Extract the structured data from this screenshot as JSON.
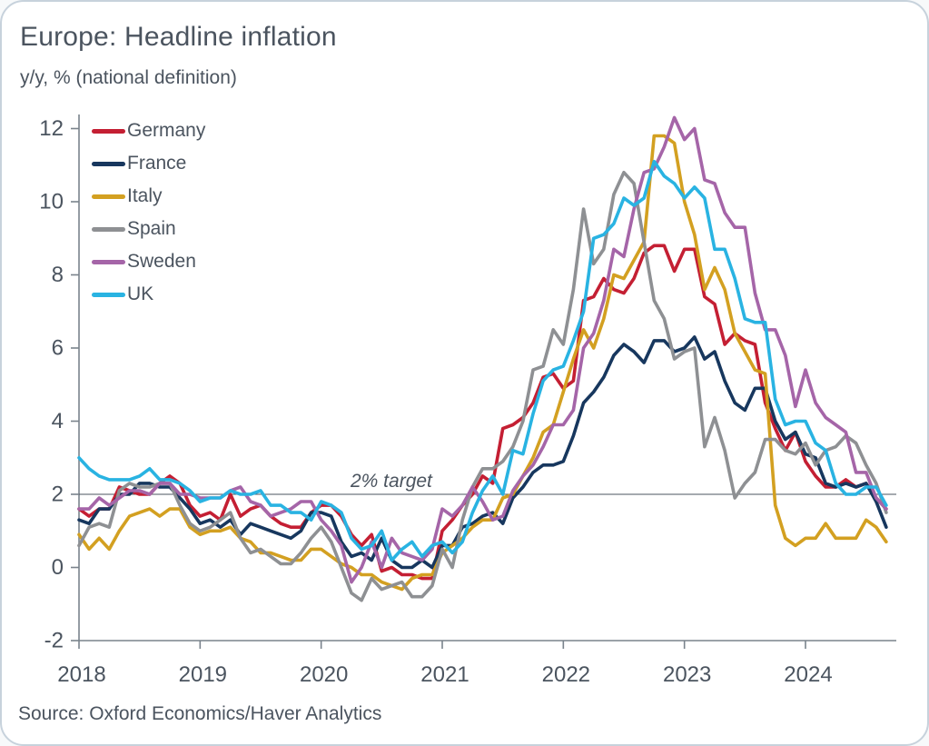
{
  "chart_data": {
    "type": "line",
    "title": "Europe: Headline inflation",
    "subtitle": "y/y, % (national definition)",
    "source": "Source: Oxford Economics/Haver Analytics",
    "annotation": "2% target",
    "target_value": 2,
    "frequency": "monthly",
    "x_start": "2018-01",
    "x_end": "2024-09",
    "x_tick_labels": [
      "2018",
      "2019",
      "2020",
      "2021",
      "2022",
      "2023",
      "2024"
    ],
    "y_ticks": [
      -2,
      0,
      2,
      4,
      6,
      8,
      10,
      12
    ],
    "ylim": [
      -2,
      12
    ],
    "grid": false,
    "legend_position": "top-left",
    "axis_color": "#7a838c",
    "text_color": "#4b545f",
    "series": [
      {
        "name": "Germany",
        "color": "#c41f33",
        "values": [
          1.6,
          1.4,
          1.6,
          1.6,
          2.2,
          2.1,
          2.0,
          2.0,
          2.3,
          2.5,
          2.3,
          1.7,
          1.4,
          1.5,
          1.3,
          2.0,
          1.4,
          1.6,
          1.7,
          1.4,
          1.2,
          1.1,
          1.1,
          1.5,
          1.7,
          1.7,
          1.4,
          0.9,
          0.6,
          0.9,
          -0.1,
          0.0,
          -0.2,
          -0.2,
          -0.3,
          -0.3,
          1.0,
          1.3,
          1.7,
          2.0,
          2.5,
          2.3,
          3.8,
          3.9,
          4.1,
          4.5,
          5.2,
          5.3,
          4.9,
          5.1,
          7.3,
          7.4,
          7.9,
          7.6,
          7.5,
          7.9,
          8.6,
          8.8,
          8.8,
          8.1,
          8.7,
          8.7,
          7.4,
          7.2,
          6.1,
          6.4,
          6.2,
          6.1,
          4.5,
          3.8,
          3.2,
          3.7,
          2.9,
          2.5,
          2.2,
          2.2,
          2.4,
          2.2,
          2.3,
          1.9,
          1.6
        ]
      },
      {
        "name": "France",
        "color": "#17375e",
        "values": [
          1.3,
          1.2,
          1.6,
          1.6,
          2.0,
          2.0,
          2.3,
          2.3,
          2.2,
          2.2,
          1.9,
          1.6,
          1.2,
          1.3,
          1.1,
          1.3,
          0.9,
          1.2,
          1.1,
          1.0,
          0.9,
          0.8,
          1.0,
          1.5,
          1.5,
          1.4,
          0.7,
          0.3,
          0.4,
          0.2,
          0.8,
          0.2,
          0.0,
          0.0,
          0.2,
          0.0,
          0.6,
          0.6,
          1.1,
          1.2,
          1.4,
          1.5,
          1.2,
          1.9,
          2.2,
          2.6,
          2.8,
          2.8,
          2.9,
          3.6,
          4.5,
          4.8,
          5.2,
          5.8,
          6.1,
          5.9,
          5.6,
          6.2,
          6.2,
          5.9,
          6.0,
          6.3,
          5.7,
          5.9,
          5.1,
          4.5,
          4.3,
          4.9,
          4.9,
          4.0,
          3.5,
          3.7,
          3.1,
          3.0,
          2.3,
          2.2,
          2.3,
          2.2,
          2.3,
          1.8,
          1.1
        ]
      },
      {
        "name": "Italy",
        "color": "#d3a021",
        "values": [
          0.9,
          0.5,
          0.8,
          0.5,
          1.0,
          1.4,
          1.5,
          1.6,
          1.4,
          1.6,
          1.6,
          1.1,
          0.9,
          1.0,
          1.0,
          1.1,
          0.8,
          0.7,
          0.4,
          0.4,
          0.3,
          0.2,
          0.2,
          0.5,
          0.5,
          0.3,
          0.1,
          0.0,
          -0.2,
          -0.2,
          -0.4,
          -0.5,
          -0.6,
          -0.3,
          -0.2,
          -0.2,
          0.4,
          0.6,
          0.8,
          1.1,
          1.3,
          1.3,
          1.9,
          2.0,
          2.5,
          3.0,
          3.7,
          3.9,
          4.8,
          5.7,
          6.5,
          6.0,
          6.8,
          8.0,
          7.9,
          8.4,
          8.9,
          11.8,
          11.8,
          11.6,
          10.0,
          9.1,
          7.6,
          8.2,
          7.6,
          6.4,
          5.9,
          5.4,
          5.3,
          1.7,
          0.8,
          0.6,
          0.8,
          0.8,
          1.2,
          0.8,
          0.8,
          0.8,
          1.3,
          1.1,
          0.7
        ]
      },
      {
        "name": "Spain",
        "color": "#8e9093",
        "values": [
          0.6,
          1.1,
          1.2,
          1.1,
          2.1,
          2.3,
          2.2,
          2.2,
          2.3,
          2.3,
          1.7,
          1.2,
          1.0,
          1.1,
          1.3,
          1.5,
          0.8,
          0.4,
          0.5,
          0.3,
          0.1,
          0.1,
          0.4,
          0.8,
          1.1,
          0.7,
          0.0,
          -0.7,
          -0.9,
          -0.3,
          -0.6,
          -0.5,
          -0.4,
          -0.8,
          -0.8,
          -0.5,
          0.5,
          0.0,
          1.3,
          2.2,
          2.7,
          2.7,
          2.9,
          3.3,
          4.0,
          5.4,
          5.5,
          6.5,
          6.1,
          7.6,
          9.8,
          8.3,
          8.7,
          10.2,
          10.8,
          10.5,
          8.9,
          7.3,
          6.8,
          5.7,
          5.9,
          6.0,
          3.3,
          4.1,
          3.2,
          1.9,
          2.3,
          2.6,
          3.5,
          3.5,
          3.2,
          3.1,
          3.4,
          2.8,
          3.2,
          3.3,
          3.6,
          3.4,
          2.8,
          2.3,
          1.5
        ]
      },
      {
        "name": "Sweden",
        "color": "#a565a8",
        "values": [
          1.6,
          1.6,
          1.9,
          1.7,
          1.9,
          2.1,
          2.1,
          2.0,
          2.3,
          2.3,
          2.0,
          2.0,
          1.9,
          1.9,
          1.9,
          2.1,
          2.2,
          1.8,
          1.7,
          1.4,
          1.5,
          1.6,
          1.8,
          1.8,
          1.3,
          1.0,
          0.6,
          -0.4,
          0.0,
          0.7,
          0.0,
          0.8,
          0.4,
          0.3,
          0.2,
          0.5,
          1.6,
          1.4,
          1.7,
          2.2,
          1.8,
          1.3,
          1.4,
          2.1,
          2.5,
          2.8,
          3.3,
          3.9,
          3.9,
          4.3,
          6.0,
          6.4,
          7.3,
          8.7,
          8.5,
          9.8,
          10.8,
          10.9,
          11.5,
          12.3,
          11.7,
          12.0,
          10.6,
          10.5,
          9.7,
          9.3,
          9.3,
          7.5,
          6.5,
          6.5,
          5.8,
          4.4,
          5.4,
          4.5,
          4.1,
          3.9,
          3.7,
          2.6,
          2.6,
          1.9,
          1.6
        ]
      },
      {
        "name": "UK",
        "color": "#29b3e2",
        "values": [
          3.0,
          2.7,
          2.5,
          2.4,
          2.4,
          2.4,
          2.5,
          2.7,
          2.4,
          2.4,
          2.3,
          2.1,
          1.8,
          1.9,
          1.9,
          2.1,
          2.0,
          2.0,
          2.1,
          1.7,
          1.7,
          1.5,
          1.5,
          1.3,
          1.8,
          1.7,
          1.5,
          0.8,
          0.5,
          0.6,
          1.0,
          0.2,
          0.5,
          0.7,
          0.3,
          0.6,
          0.7,
          0.4,
          0.7,
          1.5,
          2.1,
          2.5,
          2.0,
          3.2,
          3.1,
          4.2,
          5.1,
          5.4,
          5.5,
          6.2,
          7.0,
          9.0,
          9.1,
          9.4,
          10.1,
          9.9,
          10.1,
          11.1,
          10.7,
          10.5,
          10.1,
          10.4,
          10.1,
          8.7,
          8.7,
          7.9,
          6.8,
          6.7,
          6.7,
          4.6,
          3.9,
          4.0,
          4.0,
          3.4,
          3.2,
          2.3,
          2.0,
          2.0,
          2.2,
          2.2,
          1.7
        ]
      }
    ]
  }
}
